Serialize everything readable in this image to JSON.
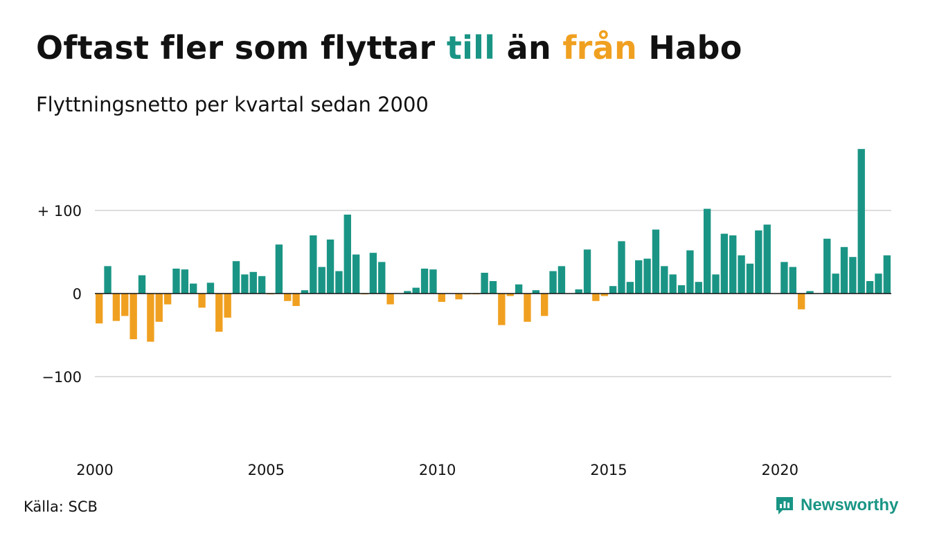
{
  "title": {
    "part1": "Oftast fler som flyttar ",
    "part2": "till",
    "part3": " än ",
    "part4": "från",
    "part5": " Habo"
  },
  "subtitle": "Flyttningsnetto per kvartal sedan 2000",
  "source": "Källa: SCB",
  "brand": "Newsworthy",
  "colors": {
    "positive": "#1a9585",
    "negative": "#f0a020",
    "grid": "#dddddd",
    "text": "#111111"
  },
  "chart_data": {
    "type": "bar",
    "ylim": [
      -175,
      175
    ],
    "yticks": [
      100,
      0,
      -100
    ],
    "ytick_labels": [
      "+ 100",
      "0",
      "−100"
    ],
    "x_start": 2000,
    "quarters_per_year": 4,
    "xticks": [
      2000,
      2005,
      2010,
      2015,
      2020
    ],
    "xtick_labels": [
      "2000",
      "2005",
      "2010",
      "2015",
      "2020"
    ],
    "values": [
      -36,
      33,
      -33,
      -27,
      -55,
      22,
      -58,
      -34,
      -13,
      30,
      29,
      12,
      -17,
      13,
      -46,
      -29,
      39,
      23,
      26,
      21,
      -1,
      59,
      -9,
      -15,
      4,
      70,
      32,
      65,
      27,
      95,
      47,
      -1,
      49,
      38,
      -13,
      0,
      3,
      7,
      30,
      29,
      -10,
      0,
      -7,
      -1,
      -1,
      25,
      15,
      -38,
      -3,
      11,
      -34,
      4,
      -27,
      27,
      33,
      0,
      5,
      53,
      -9,
      -3,
      9,
      63,
      14,
      40,
      42,
      77,
      33,
      23,
      10,
      52,
      14,
      102,
      23,
      72,
      70,
      46,
      36,
      76,
      83,
      0,
      38,
      32,
      -19,
      3,
      0,
      66,
      24,
      56,
      44,
      174,
      15,
      24,
      46
    ]
  }
}
